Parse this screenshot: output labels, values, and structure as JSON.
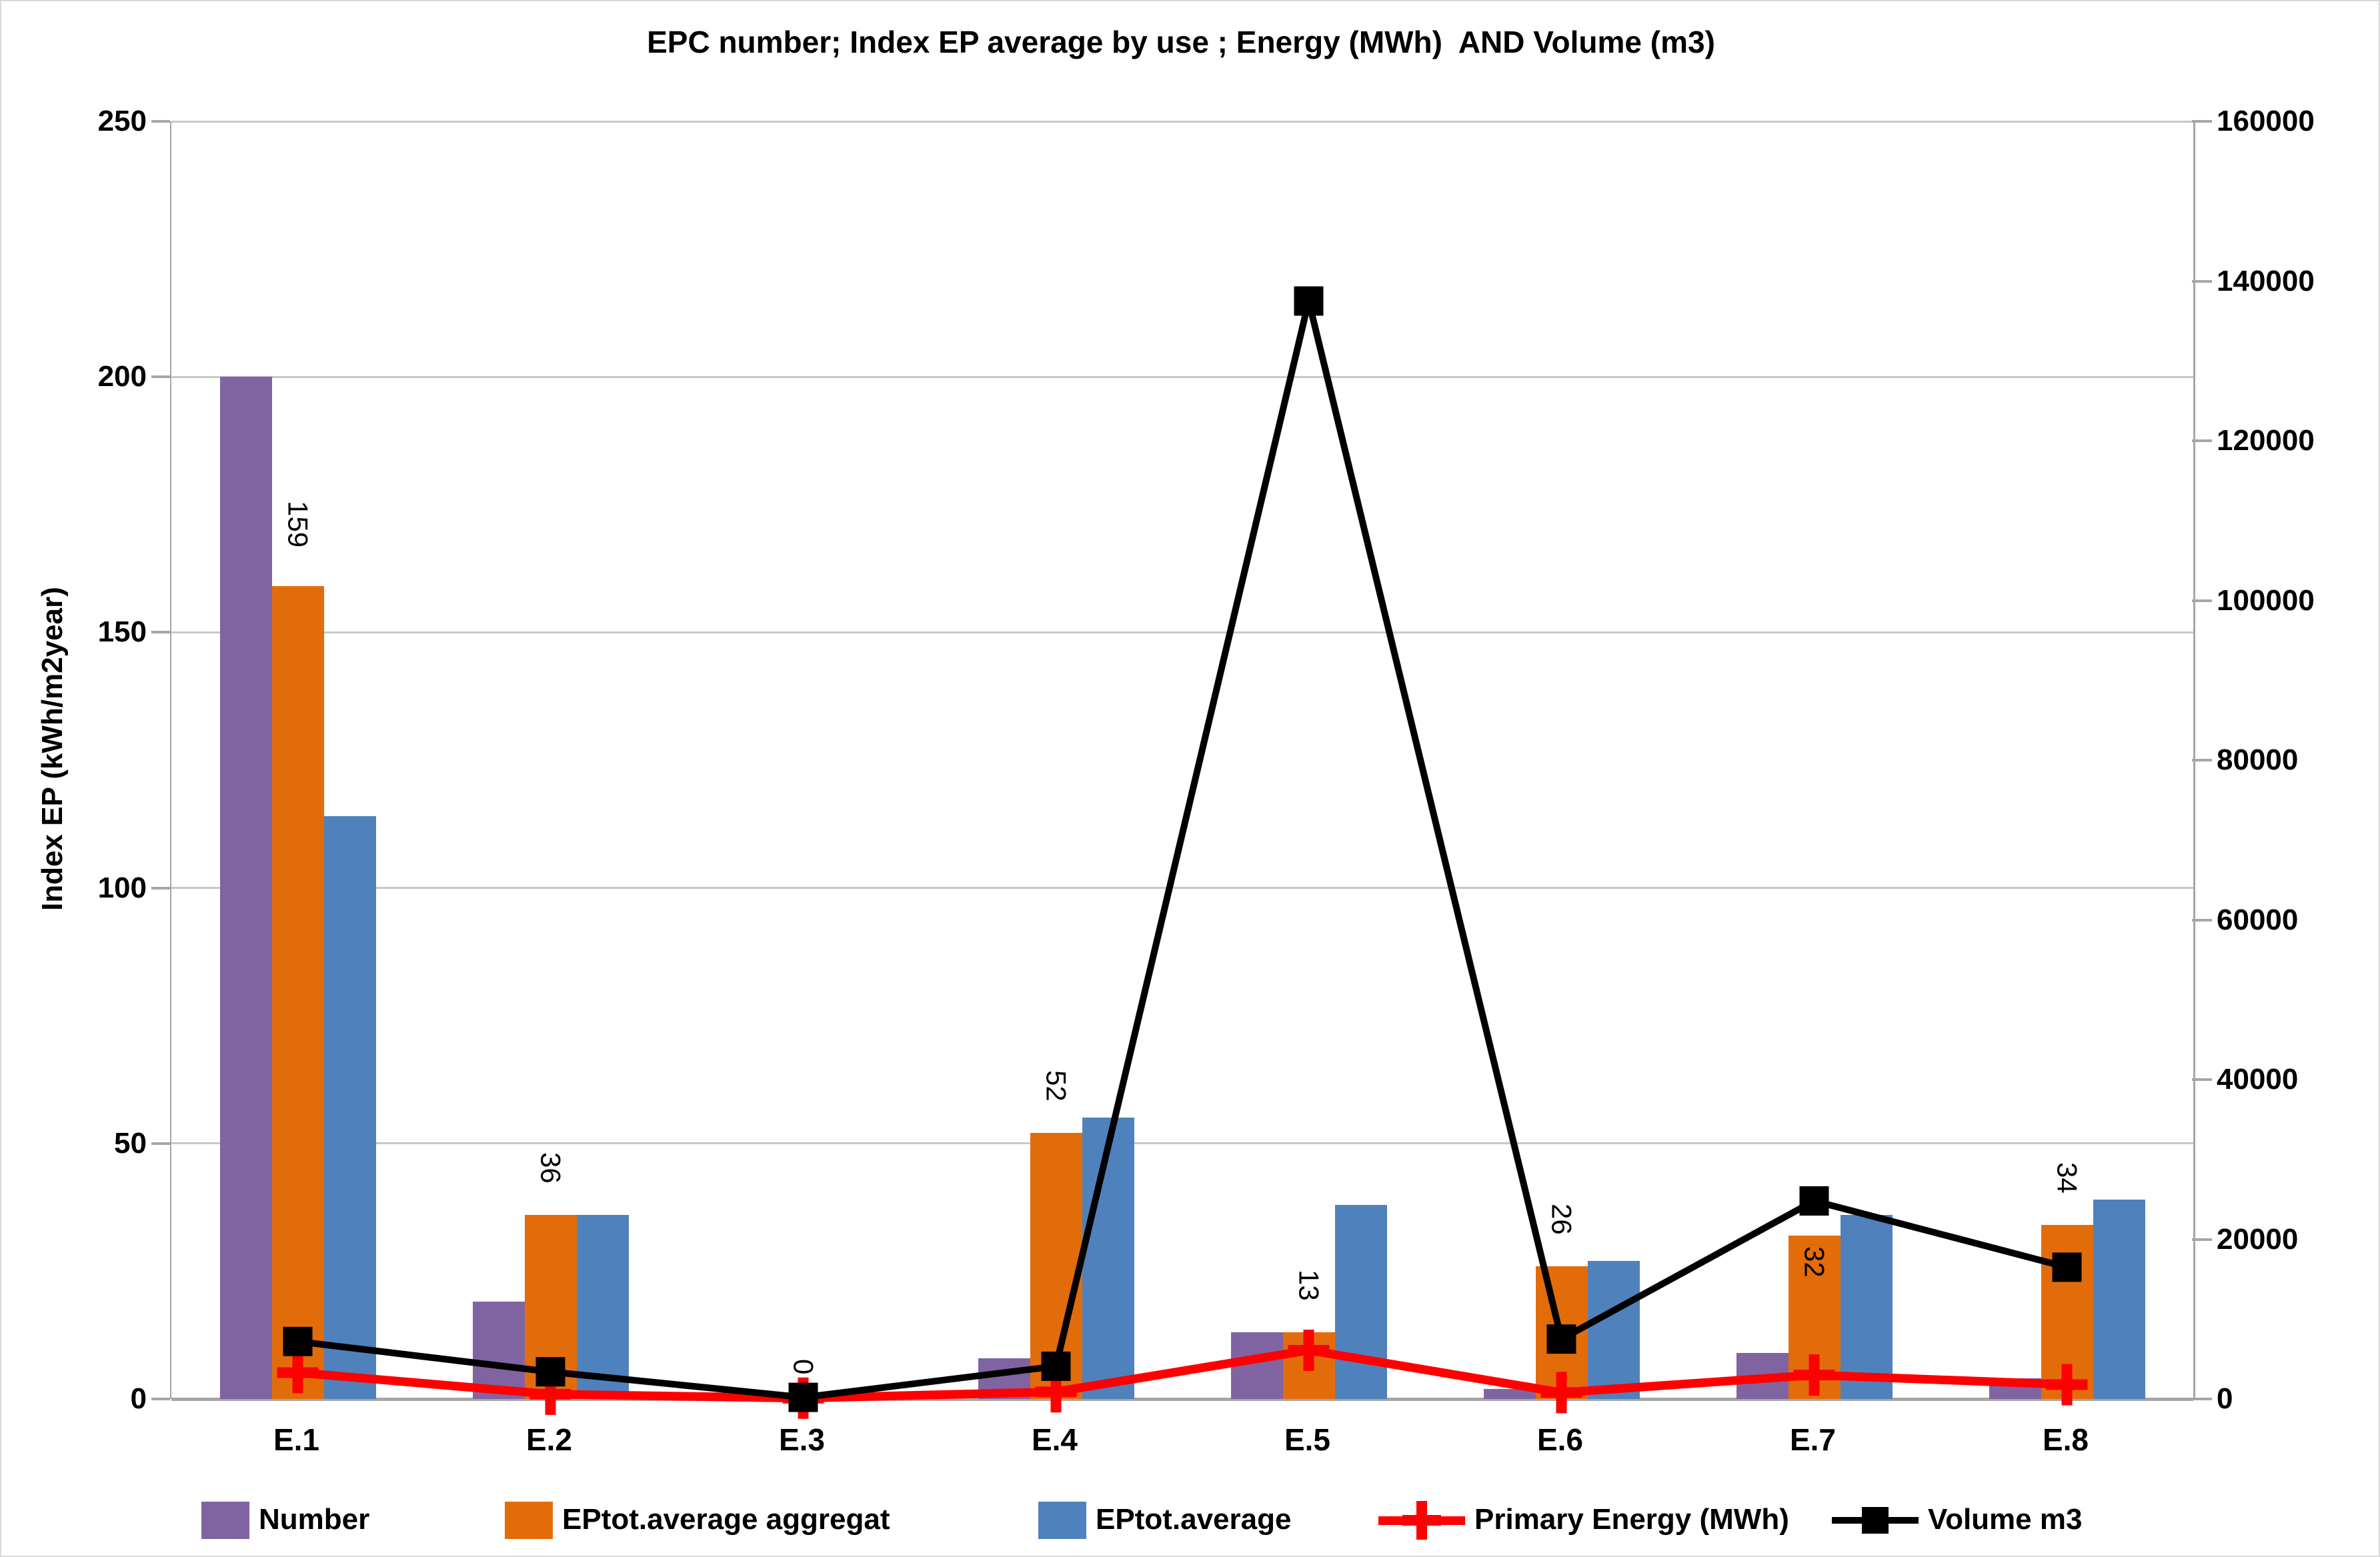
{
  "chart_data": {
    "type": "combo-bar-line",
    "title": "EPC number; Index EP average by use ; Energy (MWh)  AND Volume (m3)",
    "categories": [
      "E.1",
      "E.2",
      "E.3",
      "E.4",
      "E.5",
      "E.6",
      "E.7",
      "E.8"
    ],
    "left_axis": {
      "title": "Index EP (kWh/m2year)",
      "min": 0,
      "max": 250,
      "step": 50,
      "ticks": [
        "0",
        "50",
        "100",
        "150",
        "200",
        "250"
      ]
    },
    "right_axis": {
      "min": 0,
      "max": 160000,
      "step": 20000,
      "ticks": [
        "0",
        "20000",
        "40000",
        "60000",
        "80000",
        "100000",
        "120000",
        "140000",
        "160000"
      ]
    },
    "grid": "horizontal",
    "series": [
      {
        "name": "Number",
        "type": "bar",
        "axis": "left",
        "color": "#8064A2",
        "values": [
          200,
          19,
          0,
          8,
          13,
          2,
          9,
          4
        ]
      },
      {
        "name": "EPtot.average aggregat",
        "type": "bar",
        "axis": "left",
        "color": "#E36C0A",
        "values": [
          159,
          36,
          0,
          52,
          13,
          26,
          32,
          34
        ],
        "data_labels": [
          "159",
          "36",
          "0",
          "52",
          "13",
          "26",
          "32",
          "34"
        ],
        "label_inside": [
          false,
          false,
          false,
          false,
          false,
          false,
          true,
          false
        ]
      },
      {
        "name": "EPtot.average",
        "type": "bar",
        "axis": "left",
        "color": "#4F81BD",
        "values": [
          114,
          36,
          0,
          55,
          38,
          27,
          36,
          39
        ]
      },
      {
        "name": "Primary Energy (MWh)",
        "type": "line",
        "axis": "right",
        "color": "#FF0000",
        "marker": "plus",
        "values": [
          3300,
          600,
          100,
          900,
          6100,
          800,
          3000,
          1800
        ]
      },
      {
        "name": "Volume m3",
        "type": "line",
        "axis": "right",
        "color": "#000000",
        "marker": "square",
        "values": [
          7200,
          3400,
          200,
          4100,
          137500,
          7500,
          24800,
          16500
        ]
      }
    ],
    "legend": {
      "position": "bottom",
      "entries": [
        "Number",
        "EPtot.average aggregat",
        "EPtot.average",
        "Primary Energy (MWh)",
        "Volume m3"
      ]
    }
  }
}
